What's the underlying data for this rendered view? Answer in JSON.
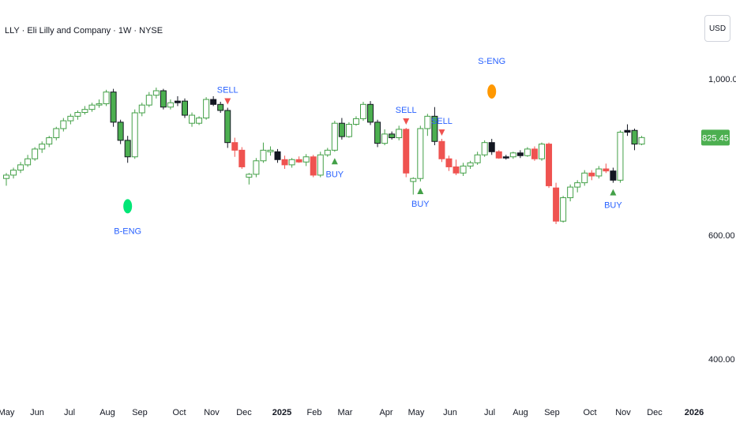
{
  "header": {
    "title": "LLY · Eli Lilly and Company · 1W · NYSE",
    "currency": "USD"
  },
  "colors": {
    "up_fill": "#ffffff",
    "up_border": "#43a047",
    "down_fill": "#ef5350",
    "down_border": "#ef5350",
    "black_body": "#131722",
    "green_body": "#4caf50",
    "signal_text": "#2962ff",
    "buy_marker": "#43a047",
    "sell_marker": "#ef5350",
    "bull_dot": "#00e676",
    "bear_dot": "#ff9800",
    "price_label_bg": "#4caf50",
    "axis_text": "#131722"
  },
  "chart_data": {
    "type": "candlestick",
    "y_scale": "log",
    "y_ticks": [
      "1,000.00",
      "600.00",
      "400.00"
    ],
    "x_ticks": [
      {
        "label": "May",
        "bold": false
      },
      {
        "label": "Jun",
        "bold": false
      },
      {
        "label": "Jul",
        "bold": false
      },
      {
        "label": "Aug",
        "bold": false
      },
      {
        "label": "Sep",
        "bold": false
      },
      {
        "label": "Oct",
        "bold": false
      },
      {
        "label": "Nov",
        "bold": false
      },
      {
        "label": "Dec",
        "bold": false
      },
      {
        "label": "2025",
        "bold": true
      },
      {
        "label": "Feb",
        "bold": false
      },
      {
        "label": "Mar",
        "bold": false
      },
      {
        "label": "Apr",
        "bold": false
      },
      {
        "label": "May",
        "bold": false
      },
      {
        "label": "Jun",
        "bold": false
      },
      {
        "label": "Jul",
        "bold": false
      },
      {
        "label": "Aug",
        "bold": false
      },
      {
        "label": "Sep",
        "bold": false
      },
      {
        "label": "Oct",
        "bold": false
      },
      {
        "label": "Nov",
        "bold": false
      },
      {
        "label": "Dec",
        "bold": false
      },
      {
        "label": "2026",
        "bold": true
      }
    ],
    "last_price": "825.45",
    "candles": [
      {
        "o": 722,
        "h": 735,
        "l": 705,
        "c": 730,
        "k": "h"
      },
      {
        "o": 730,
        "h": 748,
        "l": 722,
        "c": 742,
        "k": "h"
      },
      {
        "o": 742,
        "h": 762,
        "l": 735,
        "c": 755,
        "k": "h"
      },
      {
        "o": 755,
        "h": 780,
        "l": 750,
        "c": 770,
        "k": "h"
      },
      {
        "o": 770,
        "h": 800,
        "l": 765,
        "c": 795,
        "k": "h"
      },
      {
        "o": 795,
        "h": 815,
        "l": 785,
        "c": 808,
        "k": "h"
      },
      {
        "o": 808,
        "h": 830,
        "l": 800,
        "c": 825,
        "k": "h"
      },
      {
        "o": 825,
        "h": 855,
        "l": 818,
        "c": 850,
        "k": "h"
      },
      {
        "o": 850,
        "h": 880,
        "l": 842,
        "c": 872,
        "k": "h"
      },
      {
        "o": 872,
        "h": 892,
        "l": 862,
        "c": 885,
        "k": "h"
      },
      {
        "o": 885,
        "h": 902,
        "l": 875,
        "c": 896,
        "k": "h"
      },
      {
        "o": 896,
        "h": 915,
        "l": 890,
        "c": 905,
        "k": "h"
      },
      {
        "o": 905,
        "h": 925,
        "l": 898,
        "c": 918,
        "k": "h"
      },
      {
        "o": 918,
        "h": 935,
        "l": 910,
        "c": 922,
        "k": "h"
      },
      {
        "o": 922,
        "h": 965,
        "l": 915,
        "c": 958,
        "k": "h"
      },
      {
        "o": 958,
        "h": 968,
        "l": 855,
        "c": 868,
        "k": "g"
      },
      {
        "o": 868,
        "h": 875,
        "l": 808,
        "c": 818,
        "k": "g"
      },
      {
        "o": 818,
        "h": 830,
        "l": 760,
        "c": 775,
        "k": "g"
      },
      {
        "o": 775,
        "h": 905,
        "l": 770,
        "c": 895,
        "k": "h"
      },
      {
        "o": 895,
        "h": 925,
        "l": 885,
        "c": 918,
        "k": "h"
      },
      {
        "o": 918,
        "h": 958,
        "l": 912,
        "c": 948,
        "k": "h"
      },
      {
        "o": 948,
        "h": 972,
        "l": 938,
        "c": 962,
        "k": "h"
      },
      {
        "o": 962,
        "h": 968,
        "l": 905,
        "c": 912,
        "k": "g"
      },
      {
        "o": 912,
        "h": 935,
        "l": 905,
        "c": 925,
        "k": "h"
      },
      {
        "o": 925,
        "h": 945,
        "l": 915,
        "c": 930,
        "k": "b"
      },
      {
        "o": 930,
        "h": 938,
        "l": 880,
        "c": 888,
        "k": "g"
      },
      {
        "o": 888,
        "h": 896,
        "l": 855,
        "c": 865,
        "k": "h"
      },
      {
        "o": 865,
        "h": 885,
        "l": 860,
        "c": 880,
        "k": "h"
      },
      {
        "o": 880,
        "h": 942,
        "l": 875,
        "c": 935,
        "k": "h"
      },
      {
        "o": 935,
        "h": 945,
        "l": 915,
        "c": 920,
        "k": "b"
      },
      {
        "o": 920,
        "h": 928,
        "l": 895,
        "c": 902,
        "k": "g"
      },
      {
        "o": 902,
        "h": 910,
        "l": 798,
        "c": 812,
        "k": "g"
      },
      {
        "o": 812,
        "h": 825,
        "l": 775,
        "c": 792,
        "k": "r"
      },
      {
        "o": 792,
        "h": 800,
        "l": 745,
        "c": 750,
        "k": "r"
      },
      {
        "o": 725,
        "h": 735,
        "l": 708,
        "c": 732,
        "k": "h"
      },
      {
        "o": 732,
        "h": 772,
        "l": 725,
        "c": 765,
        "k": "h"
      },
      {
        "o": 765,
        "h": 812,
        "l": 760,
        "c": 792,
        "k": "h"
      },
      {
        "o": 792,
        "h": 802,
        "l": 778,
        "c": 788,
        "k": "h"
      },
      {
        "o": 788,
        "h": 795,
        "l": 760,
        "c": 768,
        "k": "b"
      },
      {
        "o": 768,
        "h": 778,
        "l": 745,
        "c": 755,
        "k": "r"
      },
      {
        "o": 755,
        "h": 772,
        "l": 748,
        "c": 768,
        "k": "h"
      },
      {
        "o": 768,
        "h": 776,
        "l": 760,
        "c": 762,
        "k": "r"
      },
      {
        "o": 762,
        "h": 782,
        "l": 752,
        "c": 775,
        "k": "h"
      },
      {
        "o": 775,
        "h": 780,
        "l": 725,
        "c": 730,
        "k": "r"
      },
      {
        "o": 730,
        "h": 788,
        "l": 725,
        "c": 780,
        "k": "h"
      },
      {
        "o": 780,
        "h": 798,
        "l": 775,
        "c": 792,
        "k": "h"
      },
      {
        "o": 792,
        "h": 872,
        "l": 788,
        "c": 865,
        "k": "h"
      },
      {
        "o": 865,
        "h": 880,
        "l": 820,
        "c": 828,
        "k": "g"
      },
      {
        "o": 828,
        "h": 868,
        "l": 825,
        "c": 862,
        "k": "h"
      },
      {
        "o": 862,
        "h": 885,
        "l": 858,
        "c": 878,
        "k": "h"
      },
      {
        "o": 878,
        "h": 928,
        "l": 872,
        "c": 920,
        "k": "h"
      },
      {
        "o": 920,
        "h": 930,
        "l": 860,
        "c": 868,
        "k": "g"
      },
      {
        "o": 868,
        "h": 875,
        "l": 800,
        "c": 810,
        "k": "g"
      },
      {
        "o": 810,
        "h": 848,
        "l": 805,
        "c": 835,
        "k": "h"
      },
      {
        "o": 835,
        "h": 842,
        "l": 820,
        "c": 825,
        "k": "g"
      },
      {
        "o": 825,
        "h": 858,
        "l": 818,
        "c": 848,
        "k": "h"
      },
      {
        "o": 848,
        "h": 852,
        "l": 725,
        "c": 735,
        "k": "r"
      },
      {
        "o": 715,
        "h": 725,
        "l": 685,
        "c": 722,
        "k": "h"
      },
      {
        "o": 722,
        "h": 858,
        "l": 715,
        "c": 850,
        "k": "h"
      },
      {
        "o": 850,
        "h": 892,
        "l": 830,
        "c": 885,
        "k": "h"
      },
      {
        "o": 885,
        "h": 912,
        "l": 805,
        "c": 815,
        "k": "g"
      },
      {
        "o": 815,
        "h": 822,
        "l": 762,
        "c": 770,
        "k": "r"
      },
      {
        "o": 770,
        "h": 778,
        "l": 740,
        "c": 750,
        "k": "r"
      },
      {
        "o": 750,
        "h": 768,
        "l": 730,
        "c": 735,
        "k": "r"
      },
      {
        "o": 735,
        "h": 760,
        "l": 728,
        "c": 752,
        "k": "h"
      },
      {
        "o": 752,
        "h": 765,
        "l": 745,
        "c": 760,
        "k": "h"
      },
      {
        "o": 760,
        "h": 788,
        "l": 755,
        "c": 780,
        "k": "h"
      },
      {
        "o": 780,
        "h": 818,
        "l": 775,
        "c": 812,
        "k": "h"
      },
      {
        "o": 812,
        "h": 822,
        "l": 780,
        "c": 788,
        "k": "b"
      },
      {
        "o": 788,
        "h": 792,
        "l": 770,
        "c": 772,
        "k": "r"
      },
      {
        "o": 772,
        "h": 780,
        "l": 768,
        "c": 775,
        "k": "b"
      },
      {
        "o": 775,
        "h": 788,
        "l": 770,
        "c": 785,
        "k": "h"
      },
      {
        "o": 785,
        "h": 792,
        "l": 772,
        "c": 778,
        "k": "b"
      },
      {
        "o": 778,
        "h": 800,
        "l": 775,
        "c": 795,
        "k": "h"
      },
      {
        "o": 795,
        "h": 802,
        "l": 765,
        "c": 770,
        "k": "r"
      },
      {
        "o": 770,
        "h": 812,
        "l": 765,
        "c": 808,
        "k": "h"
      },
      {
        "o": 808,
        "h": 812,
        "l": 700,
        "c": 705,
        "k": "r"
      },
      {
        "o": 700,
        "h": 712,
        "l": 622,
        "c": 628,
        "k": "r"
      },
      {
        "o": 628,
        "h": 682,
        "l": 625,
        "c": 678,
        "k": "h"
      },
      {
        "o": 678,
        "h": 708,
        "l": 670,
        "c": 702,
        "k": "h"
      },
      {
        "o": 702,
        "h": 718,
        "l": 690,
        "c": 712,
        "k": "h"
      },
      {
        "o": 712,
        "h": 742,
        "l": 705,
        "c": 735,
        "k": "h"
      },
      {
        "o": 735,
        "h": 742,
        "l": 718,
        "c": 728,
        "k": "r"
      },
      {
        "o": 728,
        "h": 752,
        "l": 722,
        "c": 745,
        "k": "h"
      },
      {
        "o": 745,
        "h": 758,
        "l": 735,
        "c": 740,
        "k": "r"
      },
      {
        "o": 740,
        "h": 748,
        "l": 712,
        "c": 718,
        "k": "b"
      },
      {
        "o": 718,
        "h": 845,
        "l": 712,
        "c": 840,
        "k": "h"
      },
      {
        "o": 840,
        "h": 862,
        "l": 830,
        "c": 845,
        "k": "b"
      },
      {
        "o": 845,
        "h": 850,
        "l": 792,
        "c": 808,
        "k": "g"
      },
      {
        "o": 808,
        "h": 830,
        "l": 805,
        "c": 825.45,
        "k": "h"
      }
    ],
    "signals": [
      {
        "i": 17,
        "type": "bull_engulfing",
        "label": "B-ENG"
      },
      {
        "i": 31,
        "type": "sell",
        "label": "SELL"
      },
      {
        "i": 46,
        "type": "buy",
        "label": "BUY"
      },
      {
        "i": 56,
        "type": "sell",
        "label": "SELL"
      },
      {
        "i": 58,
        "type": "buy",
        "label": "BUY"
      },
      {
        "i": 61,
        "type": "sell",
        "label": "SELL"
      },
      {
        "i": 68,
        "type": "bear_engulfing",
        "label": "S-ENG"
      },
      {
        "i": 85,
        "type": "buy",
        "label": "BUY"
      }
    ]
  }
}
